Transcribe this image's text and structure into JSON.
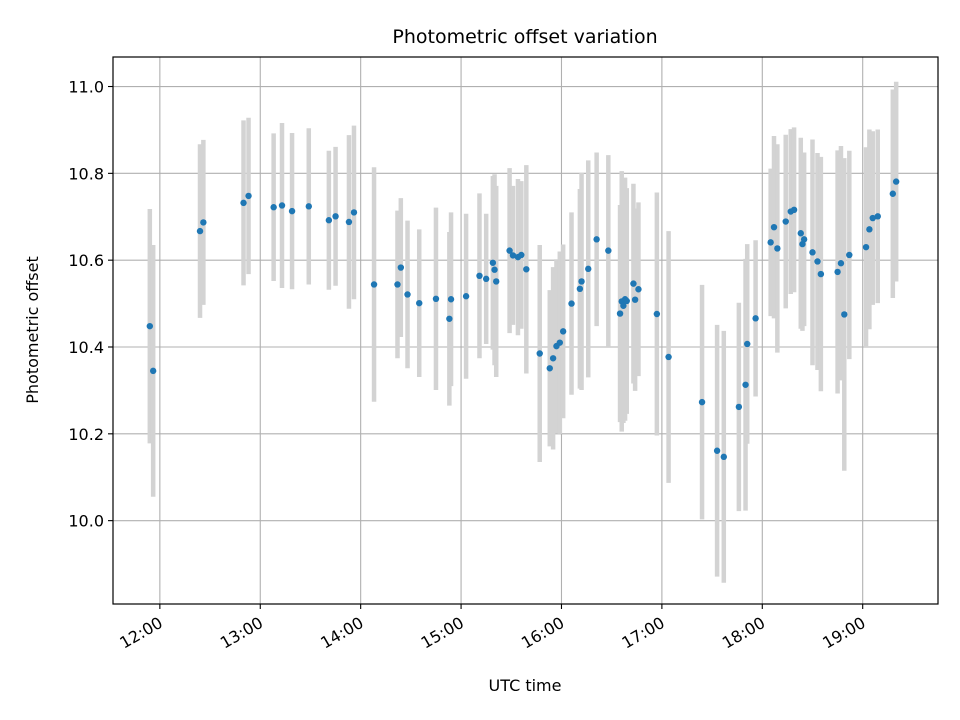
{
  "chart_data": {
    "type": "scatter",
    "title": "Photometric offset variation",
    "xlabel": "UTC time",
    "ylabel": "Photometric offset",
    "x_ticks": [
      "12:00",
      "13:00",
      "14:00",
      "15:00",
      "16:00",
      "17:00",
      "18:00",
      "19:00"
    ],
    "x_tick_hours": [
      12,
      13,
      14,
      15,
      16,
      17,
      18,
      19
    ],
    "y_ticks": [
      "10.0",
      "10.2",
      "10.4",
      "10.6",
      "10.8",
      "11.0"
    ],
    "y_tick_values": [
      10.0,
      10.2,
      10.4,
      10.6,
      10.8,
      11.0
    ],
    "xlim": [
      "11:32",
      "19:45"
    ],
    "ylim": [
      9.808,
      11.068
    ],
    "grid": true,
    "marker_color": "#1f77b4",
    "errorbar_color": "#d3d3d3",
    "series": [
      {
        "x": [
          "11:54",
          "11:56",
          "12:24",
          "12:26",
          "12:50",
          "12:53",
          "13:08",
          "13:13",
          "13:19",
          "13:29",
          "13:41",
          "13:45",
          "13:53",
          "13:56",
          "14:08",
          "14:22",
          "14:24",
          "14:28",
          "14:35",
          "14:45",
          "14:53",
          "14:54",
          "15:03",
          "15:11",
          "15:15",
          "15:19",
          "15:20",
          "15:21",
          "15:29",
          "15:31",
          "15:34",
          "15:36",
          "15:39",
          "15:47",
          "15:53",
          "15:55",
          "15:57",
          "15:59",
          "16:01",
          "16:06",
          "16:11",
          "16:12",
          "16:16",
          "16:21",
          "16:28",
          "16:35",
          "16:36",
          "16:37",
          "16:38",
          "16:39",
          "16:43",
          "16:44",
          "16:46",
          "16:57",
          "17:04",
          "17:24",
          "17:33",
          "17:37",
          "17:46",
          "17:50",
          "17:51",
          "17:56",
          "18:05",
          "18:07",
          "18:09",
          "18:14",
          "18:17",
          "18:19",
          "18:23",
          "18:24",
          "18:25",
          "18:30",
          "18:33",
          "18:35",
          "18:45",
          "18:47",
          "18:49",
          "18:52",
          "19:02",
          "19:04",
          "19:06",
          "19:09",
          "19:18",
          "19:20"
        ],
        "y": [
          10.448,
          10.345,
          10.667,
          10.687,
          10.732,
          10.748,
          10.722,
          10.726,
          10.713,
          10.724,
          10.692,
          10.701,
          10.688,
          10.71,
          10.544,
          10.544,
          10.583,
          10.521,
          10.501,
          10.511,
          10.465,
          10.51,
          10.517,
          10.564,
          10.557,
          10.594,
          10.578,
          10.551,
          10.622,
          10.611,
          10.607,
          10.612,
          10.579,
          10.385,
          10.351,
          10.374,
          10.402,
          10.41,
          10.436,
          10.5,
          10.534,
          10.551,
          10.58,
          10.648,
          10.622,
          10.477,
          10.505,
          10.495,
          10.51,
          10.506,
          10.546,
          10.509,
          10.533,
          10.476,
          10.377,
          10.273,
          10.161,
          10.147,
          10.262,
          10.313,
          10.407,
          10.466,
          10.641,
          10.676,
          10.627,
          10.689,
          10.712,
          10.716,
          10.662,
          10.637,
          10.648,
          10.618,
          10.597,
          10.568,
          10.573,
          10.593,
          10.475,
          10.612,
          10.63,
          10.671,
          10.697,
          10.701,
          10.753,
          10.781
        ],
        "yerr": [
          0.27,
          0.29,
          0.2,
          0.19,
          0.19,
          0.18,
          0.17,
          0.19,
          0.18,
          0.18,
          0.16,
          0.16,
          0.2,
          0.2,
          0.27,
          0.17,
          0.16,
          0.17,
          0.17,
          0.21,
          0.2,
          0.2,
          0.19,
          0.19,
          0.15,
          0.2,
          0.22,
          0.22,
          0.19,
          0.16,
          0.18,
          0.17,
          0.24,
          0.25,
          0.18,
          0.21,
          0.2,
          0.21,
          0.2,
          0.21,
          0.23,
          0.25,
          0.25,
          0.2,
          0.22,
          0.25,
          0.3,
          0.27,
          0.28,
          0.26,
          0.23,
          0.21,
          0.2,
          0.28,
          0.29,
          0.27,
          0.29,
          0.29,
          0.24,
          0.29,
          0.23,
          0.18,
          0.17,
          0.21,
          0.24,
          0.2,
          0.19,
          0.19,
          0.22,
          0.2,
          0.2,
          0.26,
          0.25,
          0.27,
          0.28,
          0.27,
          0.36,
          0.24,
          0.23,
          0.23,
          0.2,
          0.2,
          0.24,
          0.23
        ]
      }
    ]
  }
}
